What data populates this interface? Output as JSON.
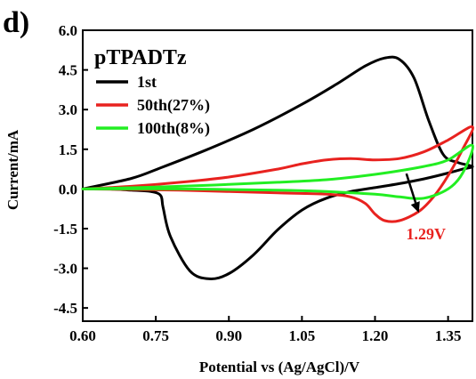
{
  "chart_data": {
    "type": "line",
    "panel_label": "d)",
    "legend_title": "pTPADTz",
    "xlabel": "Potential vs (Ag/AgCl)/V",
    "ylabel": "Current/mA",
    "xlim": [
      0.6,
      1.4
    ],
    "ylim": [
      -5.0,
      6.0
    ],
    "xticks": [
      "0.60",
      "0.75",
      "0.90",
      "1.05",
      "1.20",
      "1.35"
    ],
    "xtick_values": [
      0.6,
      0.75,
      0.9,
      1.05,
      1.2,
      1.35
    ],
    "yticks": [
      "6.0",
      "4.5",
      "3.0",
      "1.5",
      "0.0",
      "-1.5",
      "-3.0",
      "-4.5"
    ],
    "ytick_values": [
      6.0,
      4.5,
      3.0,
      1.5,
      0.0,
      -1.5,
      -3.0,
      -4.5
    ],
    "legend_position": "top-left",
    "grid": false,
    "series": [
      {
        "name": "1st",
        "color": "#000000",
        "x": [
          0.6,
          0.7,
          0.76,
          0.85,
          0.95,
          1.05,
          1.12,
          1.18,
          1.22,
          1.25,
          1.28,
          1.31,
          1.34,
          1.37,
          1.4,
          1.38,
          1.35,
          1.3,
          1.25,
          1.2,
          1.15,
          1.1,
          1.05,
          1.0,
          0.95,
          0.9,
          0.86,
          0.82,
          0.78,
          0.765,
          0.76,
          0.74,
          0.7,
          0.65,
          0.6
        ],
        "y": [
          0.0,
          0.4,
          0.8,
          1.45,
          2.25,
          3.2,
          3.95,
          4.65,
          4.95,
          4.9,
          4.2,
          2.6,
          1.3,
          1.0,
          0.85,
          0.75,
          0.6,
          0.38,
          0.2,
          0.05,
          -0.1,
          -0.35,
          -0.8,
          -1.55,
          -2.5,
          -3.2,
          -3.4,
          -3.1,
          -1.8,
          -0.7,
          -0.25,
          -0.1,
          -0.05,
          0.0,
          0.0
        ]
      },
      {
        "name": "50th(27%)",
        "color": "#e8221f",
        "x": [
          0.6,
          0.7,
          0.8,
          0.9,
          1.0,
          1.05,
          1.1,
          1.15,
          1.2,
          1.25,
          1.3,
          1.35,
          1.4,
          1.38,
          1.35,
          1.32,
          1.29,
          1.25,
          1.22,
          1.2,
          1.18,
          1.15,
          1.1,
          1.0,
          0.9,
          0.8,
          0.7,
          0.6
        ],
        "y": [
          0.0,
          0.1,
          0.25,
          0.45,
          0.75,
          0.95,
          1.1,
          1.15,
          1.1,
          1.15,
          1.4,
          1.85,
          2.35,
          1.5,
          0.5,
          -0.3,
          -0.85,
          -1.2,
          -1.2,
          -0.95,
          -0.55,
          -0.3,
          -0.2,
          -0.15,
          -0.1,
          -0.05,
          -0.02,
          0.0
        ]
      },
      {
        "name": "100th(8%)",
        "color": "#22ee22",
        "x": [
          0.6,
          0.8,
          1.0,
          1.1,
          1.2,
          1.3,
          1.35,
          1.4,
          1.38,
          1.35,
          1.3,
          1.25,
          1.2,
          1.1,
          1.0,
          0.8,
          0.6
        ],
        "y": [
          0.0,
          0.1,
          0.25,
          0.35,
          0.55,
          0.85,
          1.1,
          1.65,
          0.6,
          0.0,
          -0.35,
          -0.3,
          -0.2,
          -0.1,
          -0.05,
          0.0,
          0.0
        ]
      }
    ],
    "annotations": [
      {
        "text": "1.29V",
        "color": "#e8221f",
        "x": 1.29,
        "y": -0.9
      }
    ]
  }
}
